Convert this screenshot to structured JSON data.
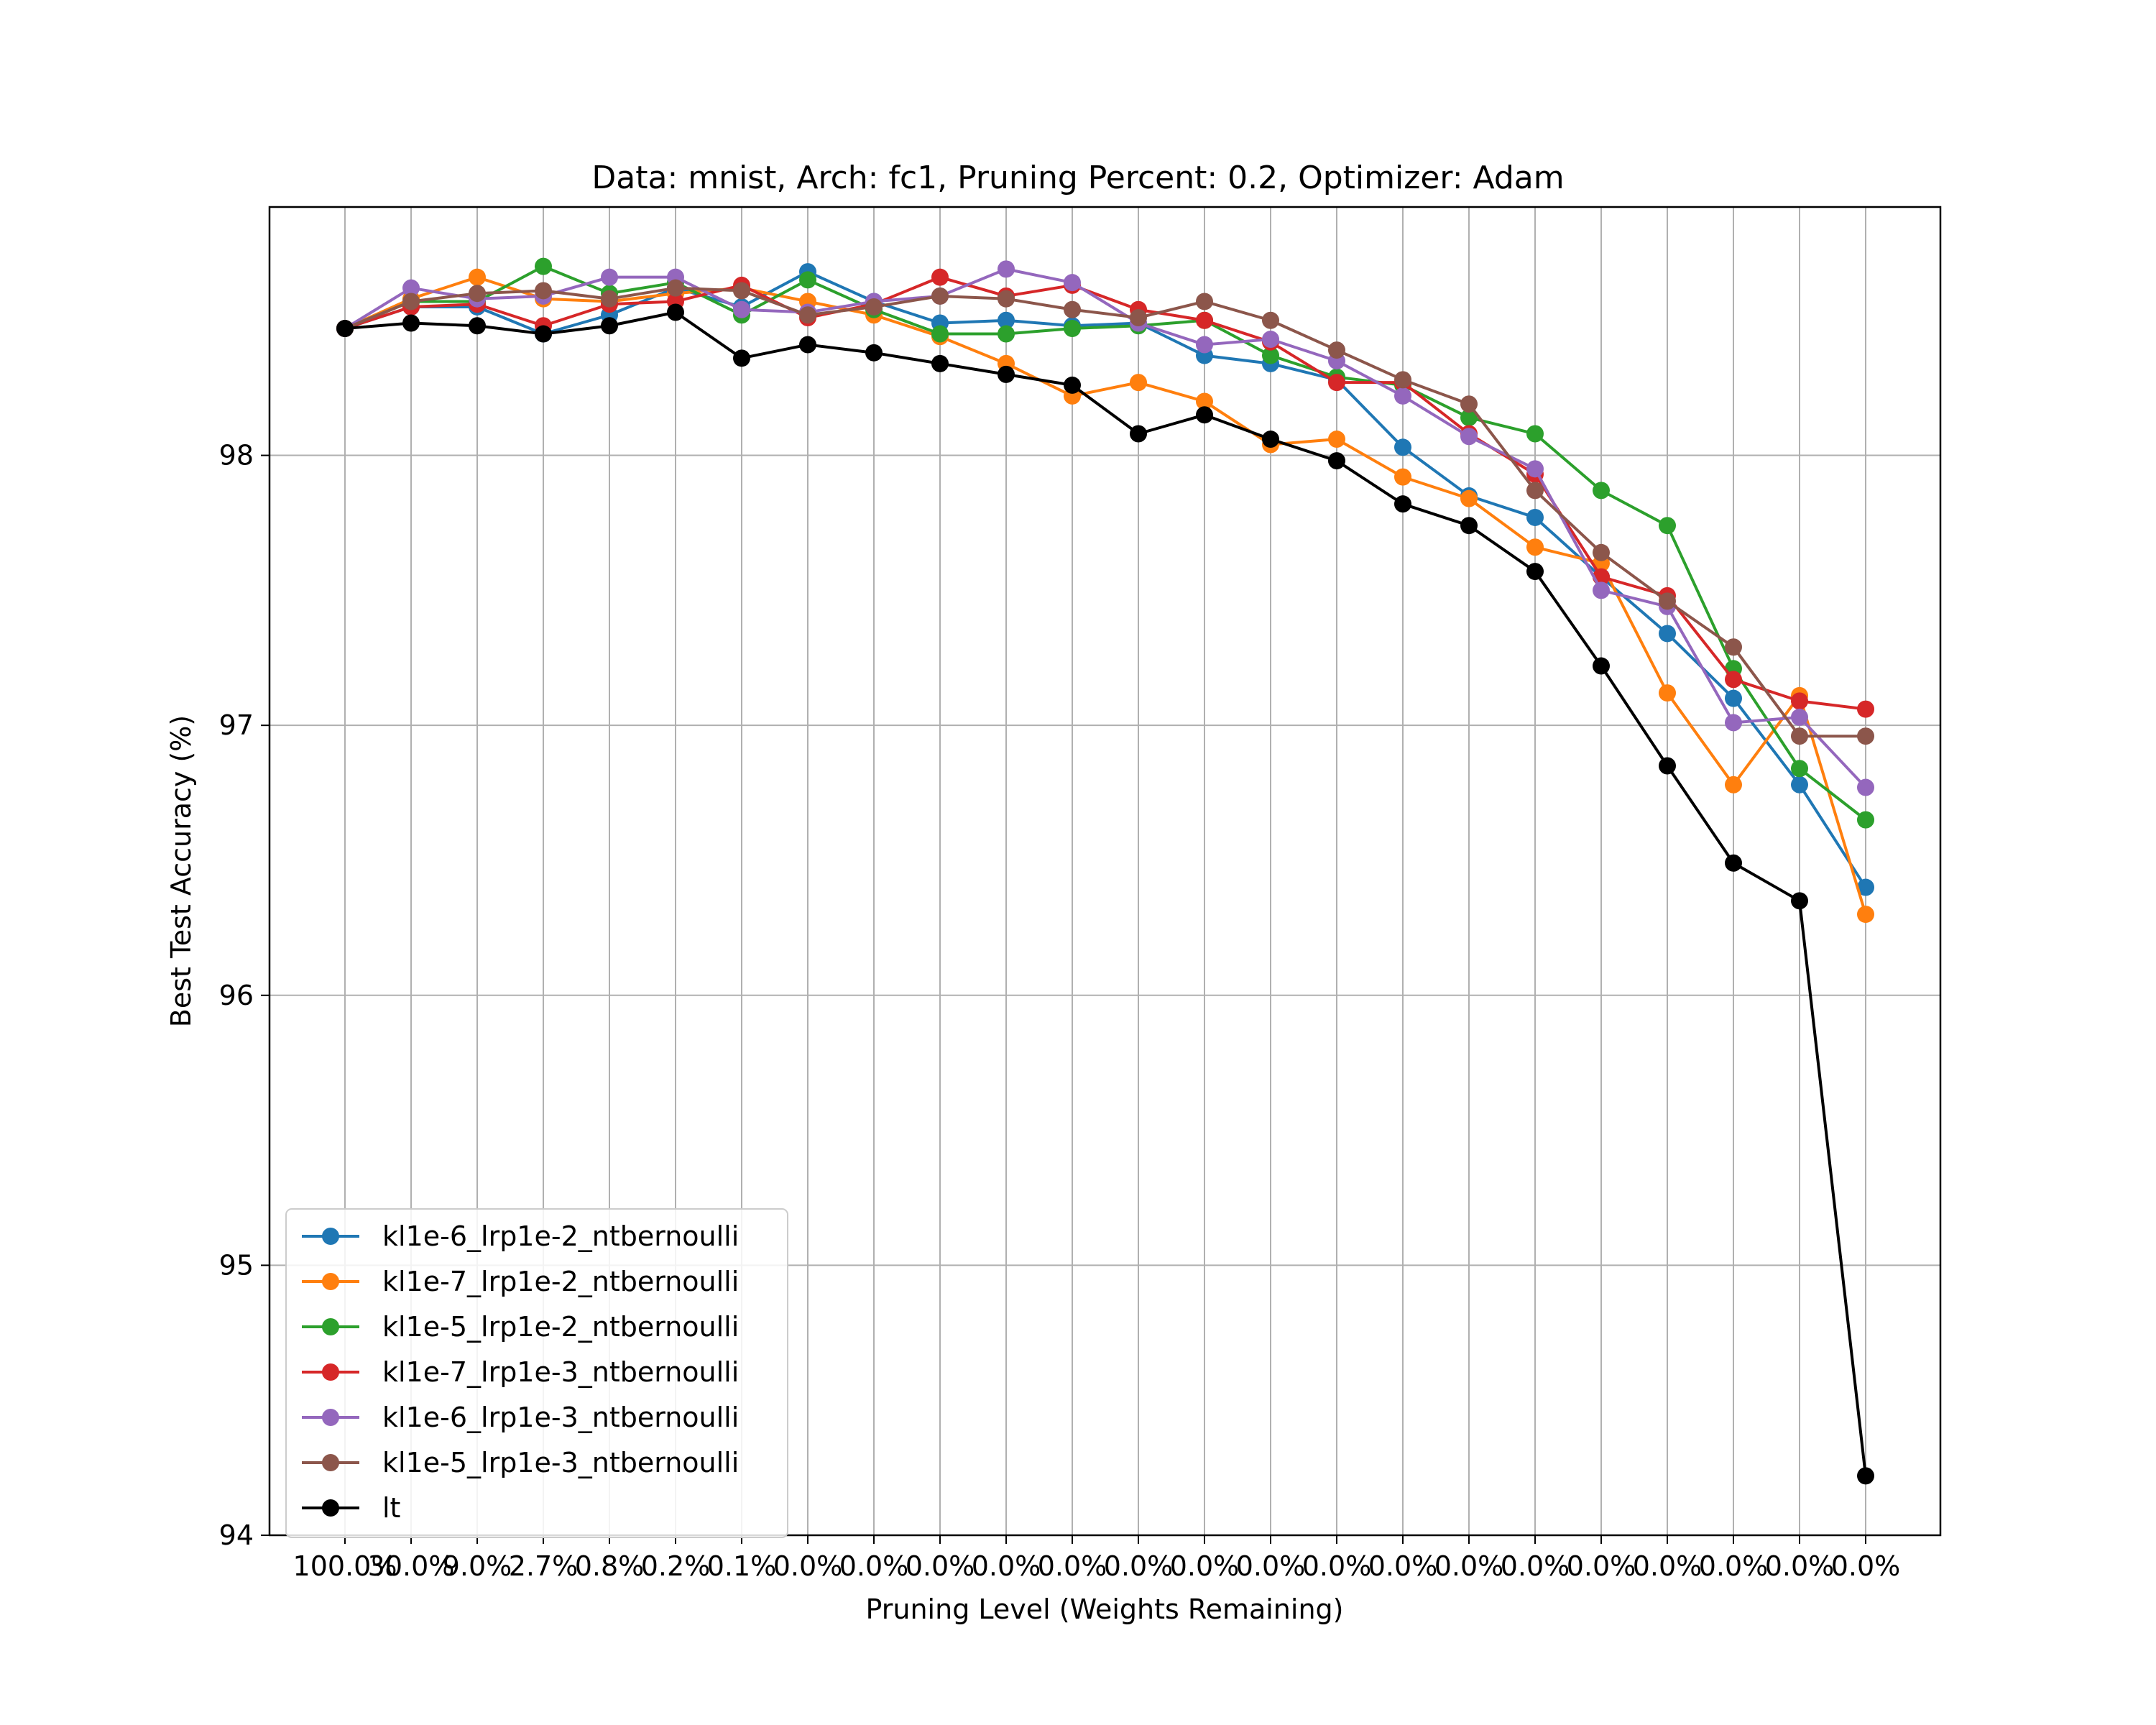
{
  "chart_data": {
    "type": "line",
    "title": "Data: mnist, Arch: fc1, Pruning Percent: 0.2, Optimizer: Adam",
    "xlabel": "Pruning Level (Weights Remaining)",
    "ylabel": "Best Test Accuracy (%)",
    "categories": [
      "100.0%",
      "30.0%",
      "9.0%",
      "2.7%",
      "0.8%",
      "0.2%",
      "0.1%",
      "0.0%",
      "0.0%",
      "0.0%",
      "0.0%",
      "0.0%",
      "0.0%",
      "0.0%",
      "0.0%",
      "0.0%",
      "0.0%",
      "0.0%",
      "0.0%",
      "0.0%",
      "0.0%",
      "0.0%",
      "0.0%",
      "0.0%"
    ],
    "ylim": [
      94.0,
      98.92
    ],
    "yticks": [
      94,
      95,
      96,
      97,
      98
    ],
    "grid": true,
    "legend_position": "lower-left",
    "colors": {
      "blue": "#1f77b4",
      "orange": "#ff7f0e",
      "green": "#2ca02c",
      "red": "#d62728",
      "purple": "#9467bd",
      "brown": "#8c564b",
      "black": "#000000"
    },
    "series": [
      {
        "name": "kl1e-6_lrp1e-2_ntbernoulli",
        "color": "#1f77b4",
        "values": [
          98.47,
          98.55,
          98.55,
          98.45,
          98.52,
          98.62,
          98.55,
          98.68,
          98.57,
          98.49,
          98.5,
          98.48,
          98.49,
          98.37,
          98.34,
          98.28,
          98.03,
          97.85,
          97.77,
          97.55,
          97.34,
          97.1,
          96.78,
          96.4
        ]
      },
      {
        "name": "kl1e-7_lrp1e-2_ntbernoulli",
        "color": "#ff7f0e",
        "values": [
          98.47,
          98.58,
          98.66,
          98.58,
          98.57,
          98.6,
          98.62,
          98.57,
          98.52,
          98.44,
          98.34,
          98.22,
          98.27,
          98.2,
          98.04,
          98.06,
          97.92,
          97.84,
          97.66,
          97.6,
          97.12,
          96.78,
          97.11,
          96.3
        ]
      },
      {
        "name": "kl1e-5_lrp1e-2_ntbernoulli",
        "color": "#2ca02c",
        "values": [
          98.47,
          98.57,
          98.57,
          98.7,
          98.6,
          98.64,
          98.52,
          98.65,
          98.54,
          98.45,
          98.45,
          98.47,
          98.48,
          98.5,
          98.37,
          98.29,
          98.26,
          98.14,
          98.08,
          97.87,
          97.74,
          97.21,
          96.84,
          96.65
        ]
      },
      {
        "name": "kl1e-7_lrp1e-3_ntbernoulli",
        "color": "#d62728",
        "values": [
          98.47,
          98.55,
          98.56,
          98.48,
          98.56,
          98.57,
          98.63,
          98.51,
          98.56,
          98.66,
          98.59,
          98.63,
          98.54,
          98.5,
          98.42,
          98.27,
          98.27,
          98.08,
          97.93,
          97.55,
          97.48,
          97.17,
          97.09,
          97.06
        ]
      },
      {
        "name": "kl1e-6_lrp1e-3_ntbernoulli",
        "color": "#9467bd",
        "values": [
          98.47,
          98.62,
          98.58,
          98.59,
          98.66,
          98.66,
          98.54,
          98.53,
          98.57,
          98.59,
          98.69,
          98.64,
          98.49,
          98.41,
          98.43,
          98.35,
          98.22,
          98.07,
          97.95,
          97.5,
          97.44,
          97.01,
          97.03,
          96.77
        ]
      },
      {
        "name": "kl1e-5_lrp1e-3_ntbernoulli",
        "color": "#8c564b",
        "values": [
          98.47,
          98.57,
          98.6,
          98.61,
          98.58,
          98.62,
          98.61,
          98.52,
          98.55,
          98.59,
          98.58,
          98.54,
          98.51,
          98.57,
          98.5,
          98.39,
          98.28,
          98.19,
          97.87,
          97.64,
          97.46,
          97.29,
          96.96,
          96.96
        ]
      },
      {
        "name": "lt",
        "color": "#000000",
        "values": [
          98.47,
          98.49,
          98.48,
          98.45,
          98.48,
          98.53,
          98.36,
          98.41,
          98.38,
          98.34,
          98.3,
          98.26,
          98.08,
          98.15,
          98.06,
          97.98,
          97.82,
          97.74,
          97.57,
          97.22,
          96.85,
          96.49,
          96.35,
          94.22
        ]
      }
    ]
  }
}
